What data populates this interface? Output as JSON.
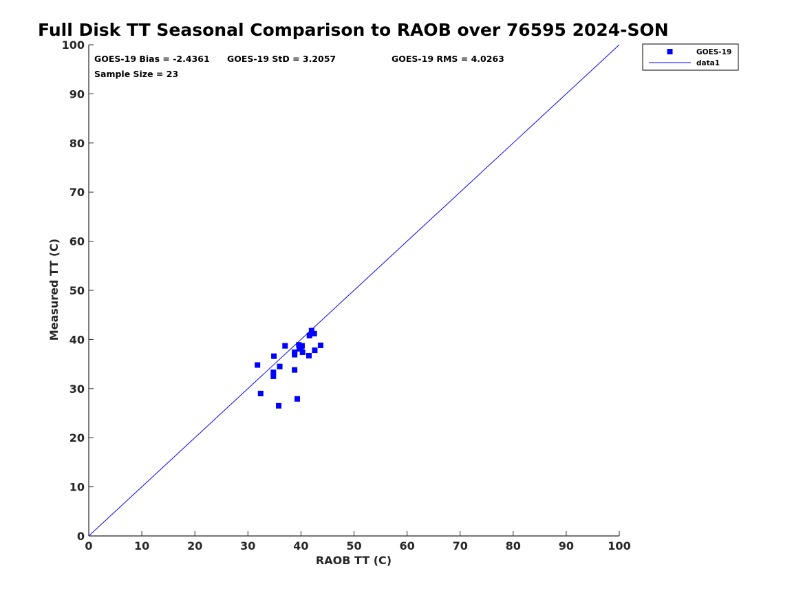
{
  "chart_data": {
    "type": "scatter",
    "title": "Full Disk TT Seasonal Comparison to RAOB over 76595 2024-SON",
    "xlabel": "RAOB TT (C)",
    "ylabel": "Measured TT (C)",
    "xlim": [
      0,
      100
    ],
    "ylim": [
      0,
      100
    ],
    "xticks": [
      0,
      10,
      20,
      30,
      40,
      50,
      60,
      70,
      80,
      90,
      100
    ],
    "yticks": [
      0,
      10,
      20,
      30,
      40,
      50,
      60,
      70,
      80,
      90,
      100
    ],
    "grid": false,
    "legend_position": "top-right",
    "annotations": {
      "bias": "GOES-19 Bias = -2.4361",
      "std": "GOES-19 StD = 3.2057",
      "rms": "GOES-19 RMS = 4.0263",
      "sample": "Sample Size = 23"
    },
    "series": [
      {
        "name": "GOES-19",
        "kind": "scatter",
        "marker": "square",
        "color": "#0000ff",
        "points": [
          [
            31.8,
            34.8
          ],
          [
            32.4,
            29.0
          ],
          [
            34.8,
            32.5
          ],
          [
            34.8,
            33.3
          ],
          [
            34.9,
            36.6
          ],
          [
            35.8,
            26.5
          ],
          [
            36.0,
            34.5
          ],
          [
            37.0,
            38.7
          ],
          [
            38.8,
            37.4
          ],
          [
            38.8,
            36.9
          ],
          [
            38.8,
            33.8
          ],
          [
            39.3,
            27.9
          ],
          [
            39.6,
            38.9
          ],
          [
            39.7,
            38.1
          ],
          [
            40.2,
            38.7
          ],
          [
            40.3,
            37.4
          ],
          [
            41.5,
            36.7
          ],
          [
            41.6,
            40.8
          ],
          [
            42.0,
            41.8
          ],
          [
            42.5,
            41.2
          ],
          [
            42.6,
            37.8
          ],
          [
            43.7,
            38.8
          ],
          [
            40.0,
            38.3
          ]
        ]
      },
      {
        "name": "data1",
        "kind": "line",
        "color": "#0000ff",
        "points": [
          [
            0,
            0
          ],
          [
            100,
            100
          ]
        ]
      }
    ]
  }
}
